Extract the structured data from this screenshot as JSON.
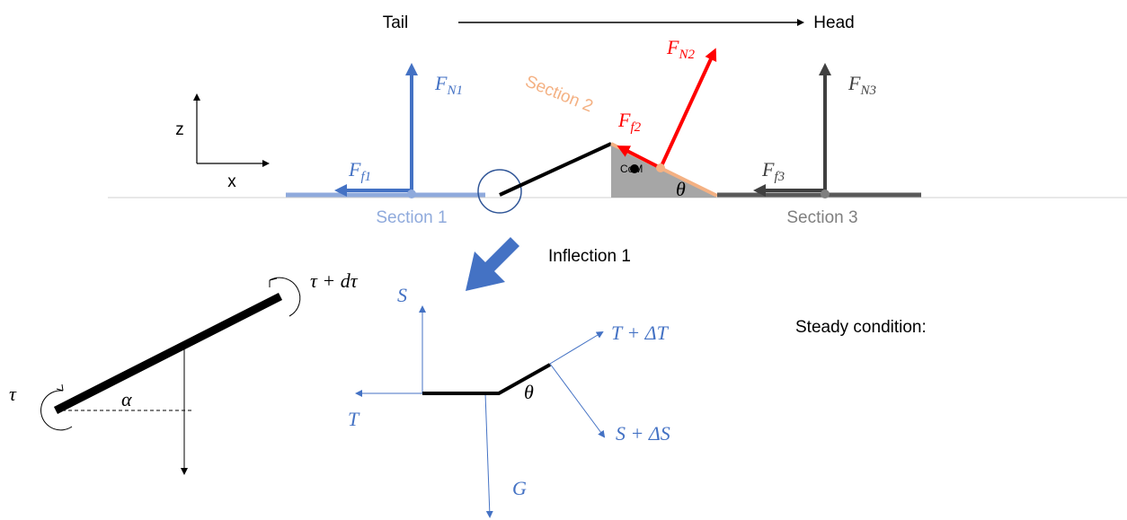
{
  "direction": {
    "tail": "Tail",
    "head": "Head"
  },
  "axes": {
    "z": "z",
    "x": "x"
  },
  "forces": {
    "normal_1": {
      "symbol": "F",
      "subscript": "N1"
    },
    "friction_1": {
      "symbol": "F",
      "subscript": "f1"
    },
    "normal_2": {
      "symbol": "F",
      "subscript": "N2"
    },
    "friction_2": {
      "symbol": "F",
      "subscript": "f2"
    },
    "normal_3": {
      "symbol": "F",
      "subscript": "N3"
    },
    "friction_3": {
      "symbol": "F",
      "subscript": "f3"
    }
  },
  "sections": {
    "section_1": "Section 1",
    "section_2": "Section 2",
    "section_3": "Section 3"
  },
  "com": "CoM",
  "slope_angle": "θ",
  "inflection": "Inflection 1",
  "segment": {
    "torque_top": "τ + dτ",
    "torque_bottom": "τ",
    "angle": "α"
  },
  "joint": {
    "shear": "S",
    "tension": "T",
    "tension_next": "T + ΔT",
    "shear_next": "S + ΔS",
    "gravity": "G",
    "angle": "θ"
  },
  "steady": "Steady condition:"
}
